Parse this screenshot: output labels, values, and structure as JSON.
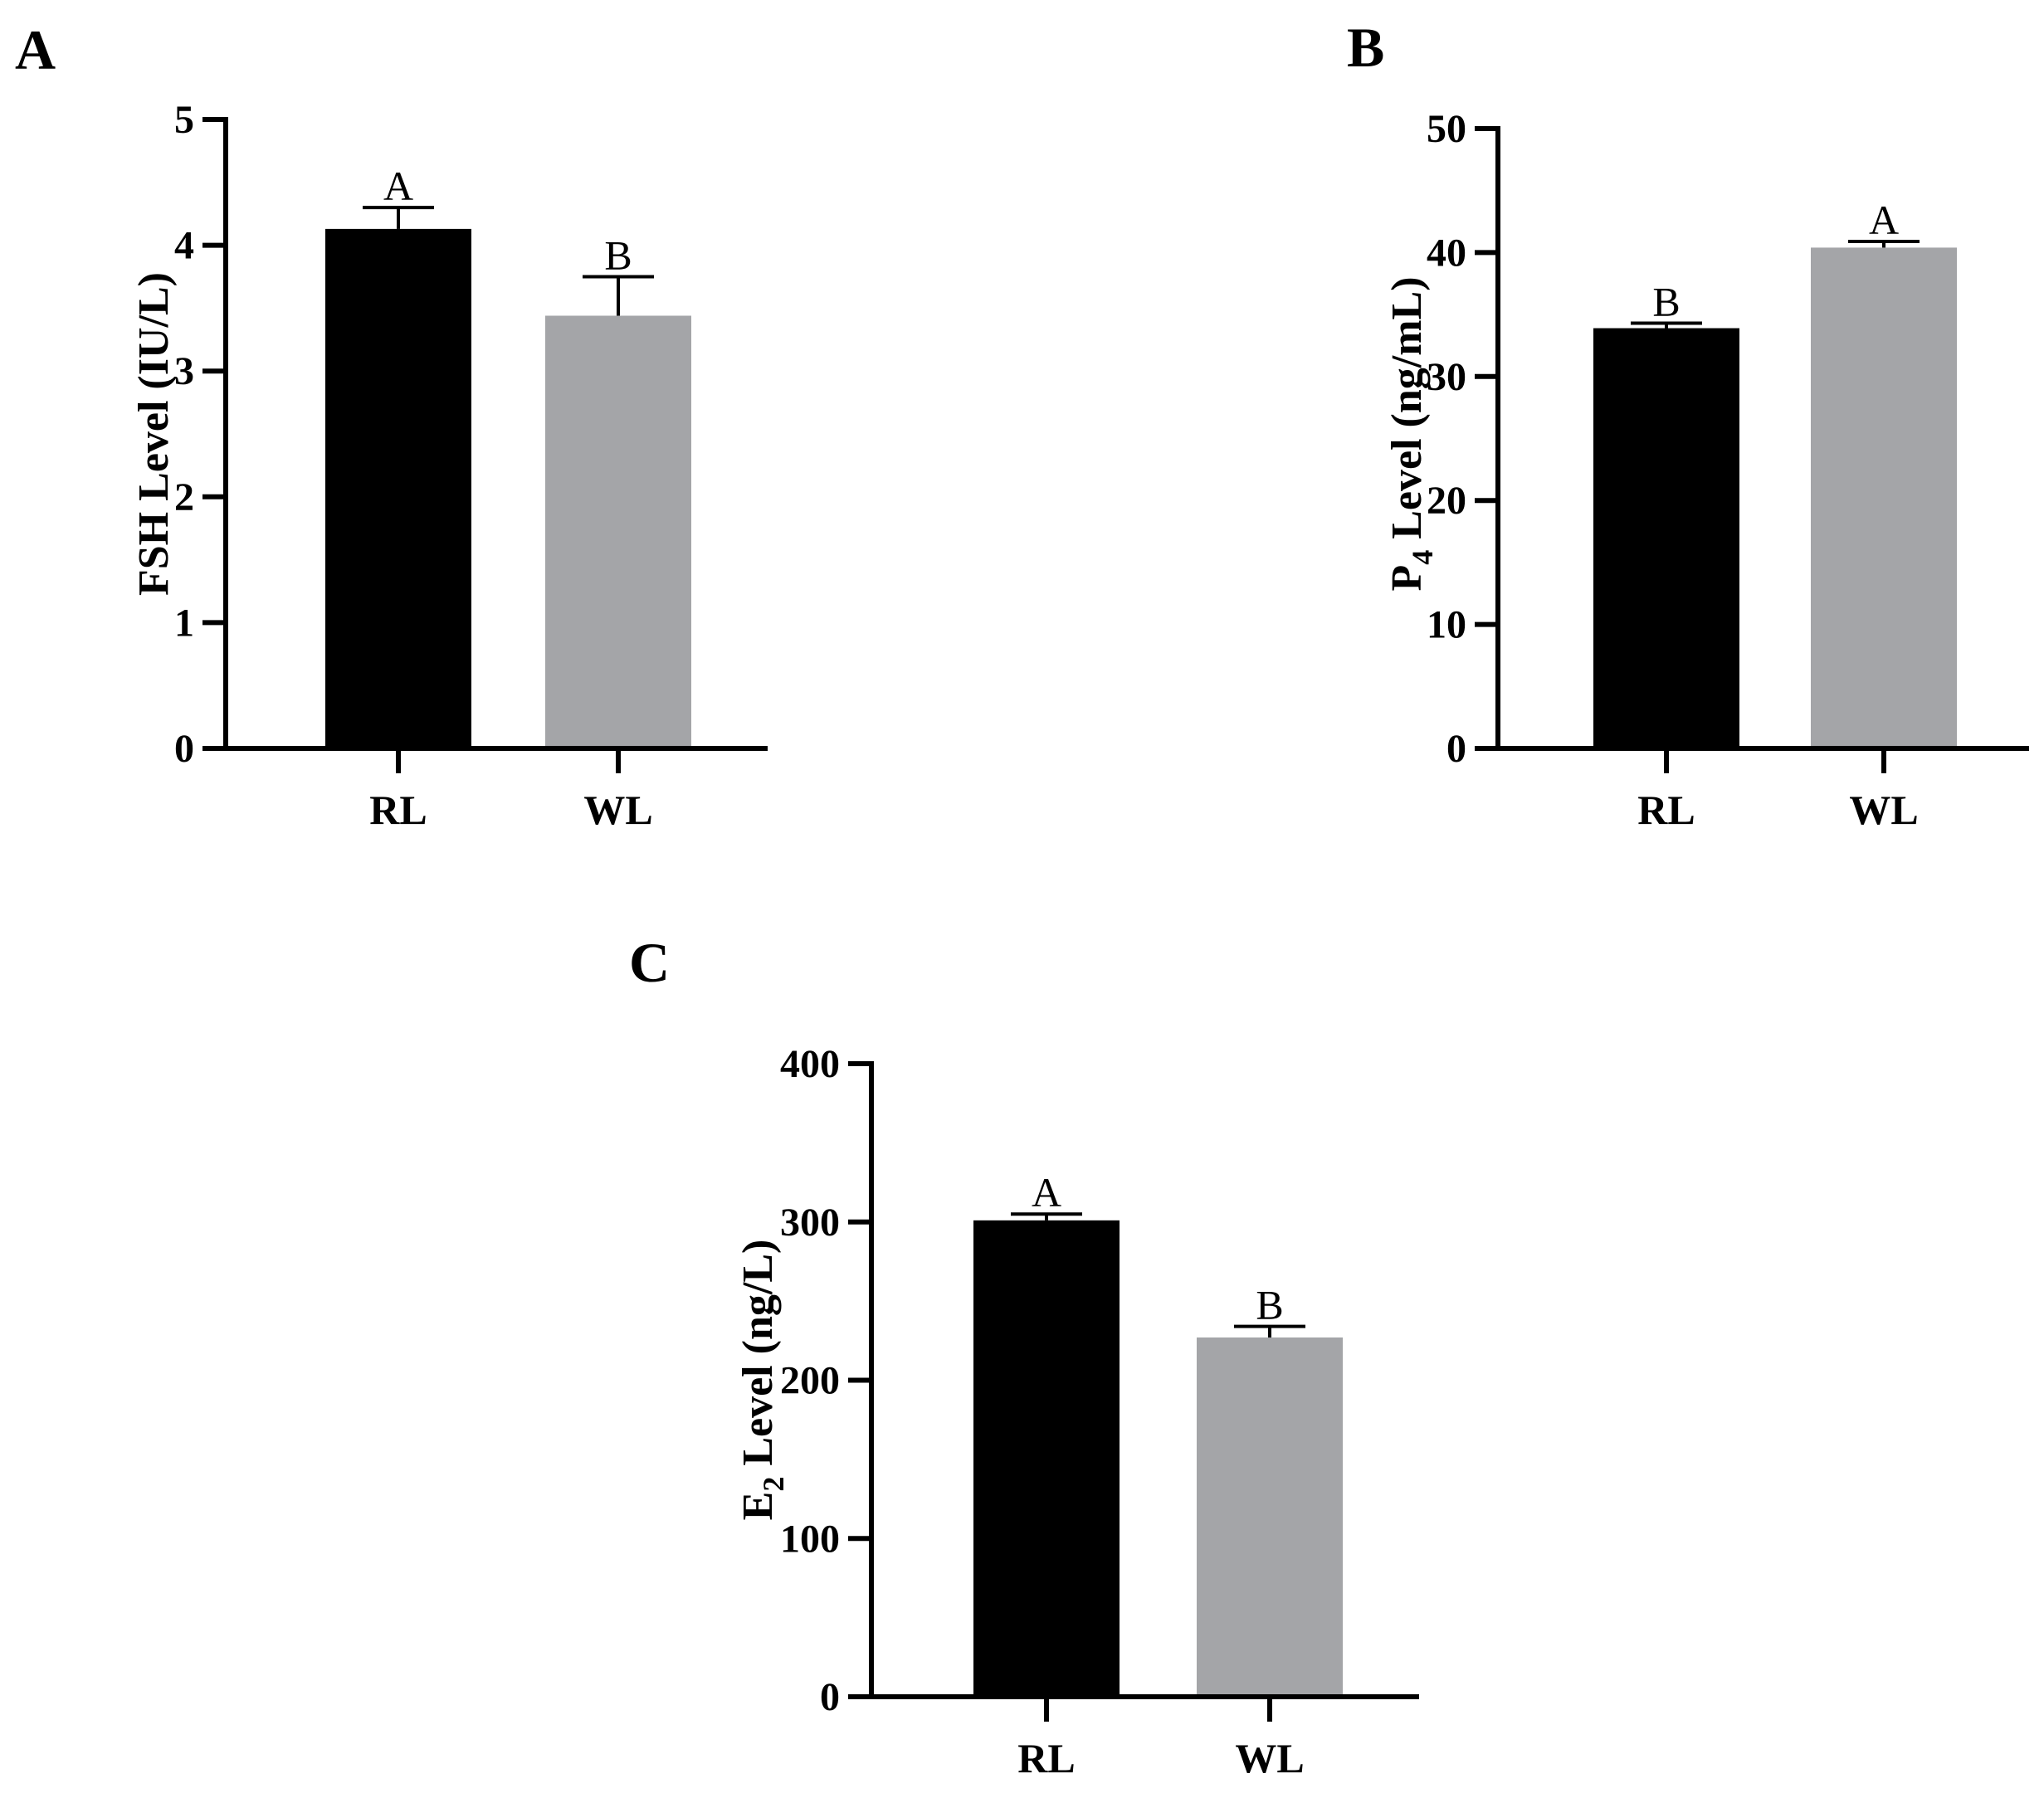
{
  "chart_data": [
    {
      "panel": "A",
      "type": "bar",
      "categories": [
        "RL",
        "WL"
      ],
      "values": [
        4.13,
        3.44
      ],
      "errors": [
        0.17,
        0.31
      ],
      "significance": [
        "A",
        "B"
      ],
      "colors": [
        "#000000",
        "#a4a5a8"
      ],
      "ylabel_main": "FSH Level (IU/L)",
      "ylabel_sub": "",
      "ylabel_tail": "",
      "yticks": [
        "0",
        "1",
        "2",
        "3",
        "4",
        "5"
      ],
      "ylim": [
        0,
        5
      ]
    },
    {
      "panel": "B",
      "type": "bar",
      "categories": [
        "RL",
        "WL"
      ],
      "values": [
        33.9,
        40.4
      ],
      "errors": [
        0.4,
        0.5
      ],
      "significance": [
        "B",
        "A"
      ],
      "colors": [
        "#000000",
        "#a4a5a8"
      ],
      "ylabel_main": "P",
      "ylabel_sub": "4",
      "ylabel_tail": " Level (ng/mL)",
      "yticks": [
        "0",
        "10",
        "20",
        "30",
        "40",
        "50"
      ],
      "ylim": [
        0,
        50
      ]
    },
    {
      "panel": "C",
      "type": "bar",
      "categories": [
        "RL",
        "WL"
      ],
      "values": [
        301,
        227
      ],
      "errors": [
        4,
        7
      ],
      "significance": [
        "A",
        "B"
      ],
      "colors": [
        "#000000",
        "#a4a5a8"
      ],
      "ylabel_main": "E",
      "ylabel_sub": "2",
      "ylabel_tail": " Level (ng/L)",
      "yticks": [
        "0",
        "100",
        "200",
        "300",
        "400"
      ],
      "ylim": [
        0,
        400
      ]
    }
  ]
}
